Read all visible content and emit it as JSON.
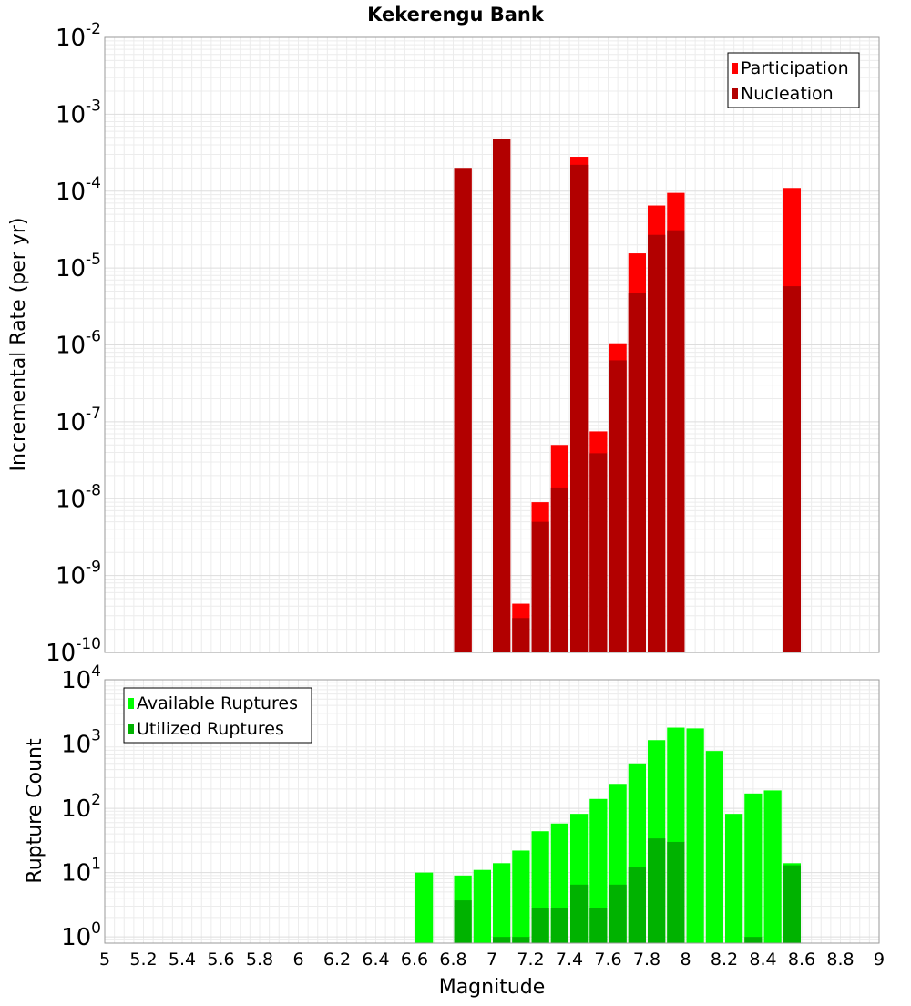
{
  "chart_data": [
    {
      "type": "bar",
      "title": "Kekerengu Bank",
      "xlabel": "",
      "ylabel": "Incremental Rate (per yr)",
      "xlim": [
        5,
        9
      ],
      "ylim": [
        1e-10,
        0.01
      ],
      "yscale": "log",
      "grid": true,
      "legend_position": "top-right",
      "x_ticks": [],
      "y_ticks": [
        {
          "base": "10",
          "exp": "-10",
          "value": 1e-10
        },
        {
          "base": "10",
          "exp": "-9",
          "value": 1e-09
        },
        {
          "base": "10",
          "exp": "-8",
          "value": 1e-08
        },
        {
          "base": "10",
          "exp": "-7",
          "value": 1e-07
        },
        {
          "base": "10",
          "exp": "-6",
          "value": 1e-06
        },
        {
          "base": "10",
          "exp": "-5",
          "value": 1e-05
        },
        {
          "base": "10",
          "exp": "-4",
          "value": 0.0001
        },
        {
          "base": "10",
          "exp": "-3",
          "value": 0.001
        },
        {
          "base": "10",
          "exp": "-2",
          "value": 0.01
        }
      ],
      "bar_width": 0.1,
      "series": [
        {
          "name": "Participation",
          "color": "#ff0000",
          "x": [
            6.85,
            7.05,
            7.15,
            7.25,
            7.35,
            7.45,
            7.55,
            7.65,
            7.75,
            7.85,
            7.95,
            8.55
          ],
          "values": [
            0.0002,
            0.00048,
            4.3e-10,
            9e-09,
            5e-08,
            0.00028,
            7.5e-08,
            1.05e-06,
            1.55e-05,
            6.5e-05,
            9.5e-05,
            0.00011
          ]
        },
        {
          "name": "Nucleation",
          "color": "#b20000",
          "x": [
            6.85,
            7.05,
            7.15,
            7.25,
            7.35,
            7.45,
            7.55,
            7.65,
            7.75,
            7.85,
            7.95,
            8.55
          ],
          "values": [
            0.0002,
            0.00048,
            2.8e-10,
            5e-09,
            1.4e-08,
            0.00022,
            3.9e-08,
            6.3e-07,
            4.8e-06,
            2.7e-05,
            3.1e-05,
            5.8e-06
          ]
        }
      ]
    },
    {
      "type": "bar",
      "title": "",
      "xlabel": "Magnitude",
      "ylabel": "Rupture Count",
      "xlim": [
        5,
        9
      ],
      "ylim": [
        0.8,
        10000
      ],
      "yscale": "log",
      "grid": true,
      "legend_position": "top-left",
      "x_ticks": [
        "5",
        "5.2",
        "5.4",
        "5.6",
        "5.8",
        "6",
        "6.2",
        "6.4",
        "6.6",
        "6.8",
        "7",
        "7.2",
        "7.4",
        "7.6",
        "7.8",
        "8",
        "8.2",
        "8.4",
        "8.6",
        "8.8",
        "9"
      ],
      "y_ticks": [
        {
          "base": "10",
          "exp": "0",
          "value": 1
        },
        {
          "base": "10",
          "exp": "1",
          "value": 10
        },
        {
          "base": "10",
          "exp": "2",
          "value": 100
        },
        {
          "base": "10",
          "exp": "3",
          "value": 1000
        },
        {
          "base": "10",
          "exp": "4",
          "value": 10000
        }
      ],
      "bar_width": 0.1,
      "series": [
        {
          "name": "Available Ruptures",
          "color": "#00ff00",
          "x": [
            6.65,
            6.85,
            6.95,
            7.05,
            7.15,
            7.25,
            7.35,
            7.45,
            7.55,
            7.65,
            7.75,
            7.85,
            7.95,
            8.05,
            8.15,
            8.25,
            8.35,
            8.45,
            8.55
          ],
          "values": [
            10,
            9,
            11,
            14,
            22,
            44,
            58,
            82,
            140,
            240,
            500,
            1150,
            1800,
            1750,
            780,
            82,
            170,
            190,
            14
          ]
        },
        {
          "name": "Utilized Ruptures",
          "color": "#00b200",
          "x": [
            6.85,
            7.05,
            7.15,
            7.25,
            7.35,
            7.45,
            7.55,
            7.65,
            7.75,
            7.85,
            7.95,
            8.35,
            8.55
          ],
          "values": [
            3.7,
            1,
            1,
            2.8,
            2.8,
            6.5,
            2.8,
            6.5,
            12,
            34,
            30,
            1,
            13
          ]
        }
      ]
    }
  ]
}
